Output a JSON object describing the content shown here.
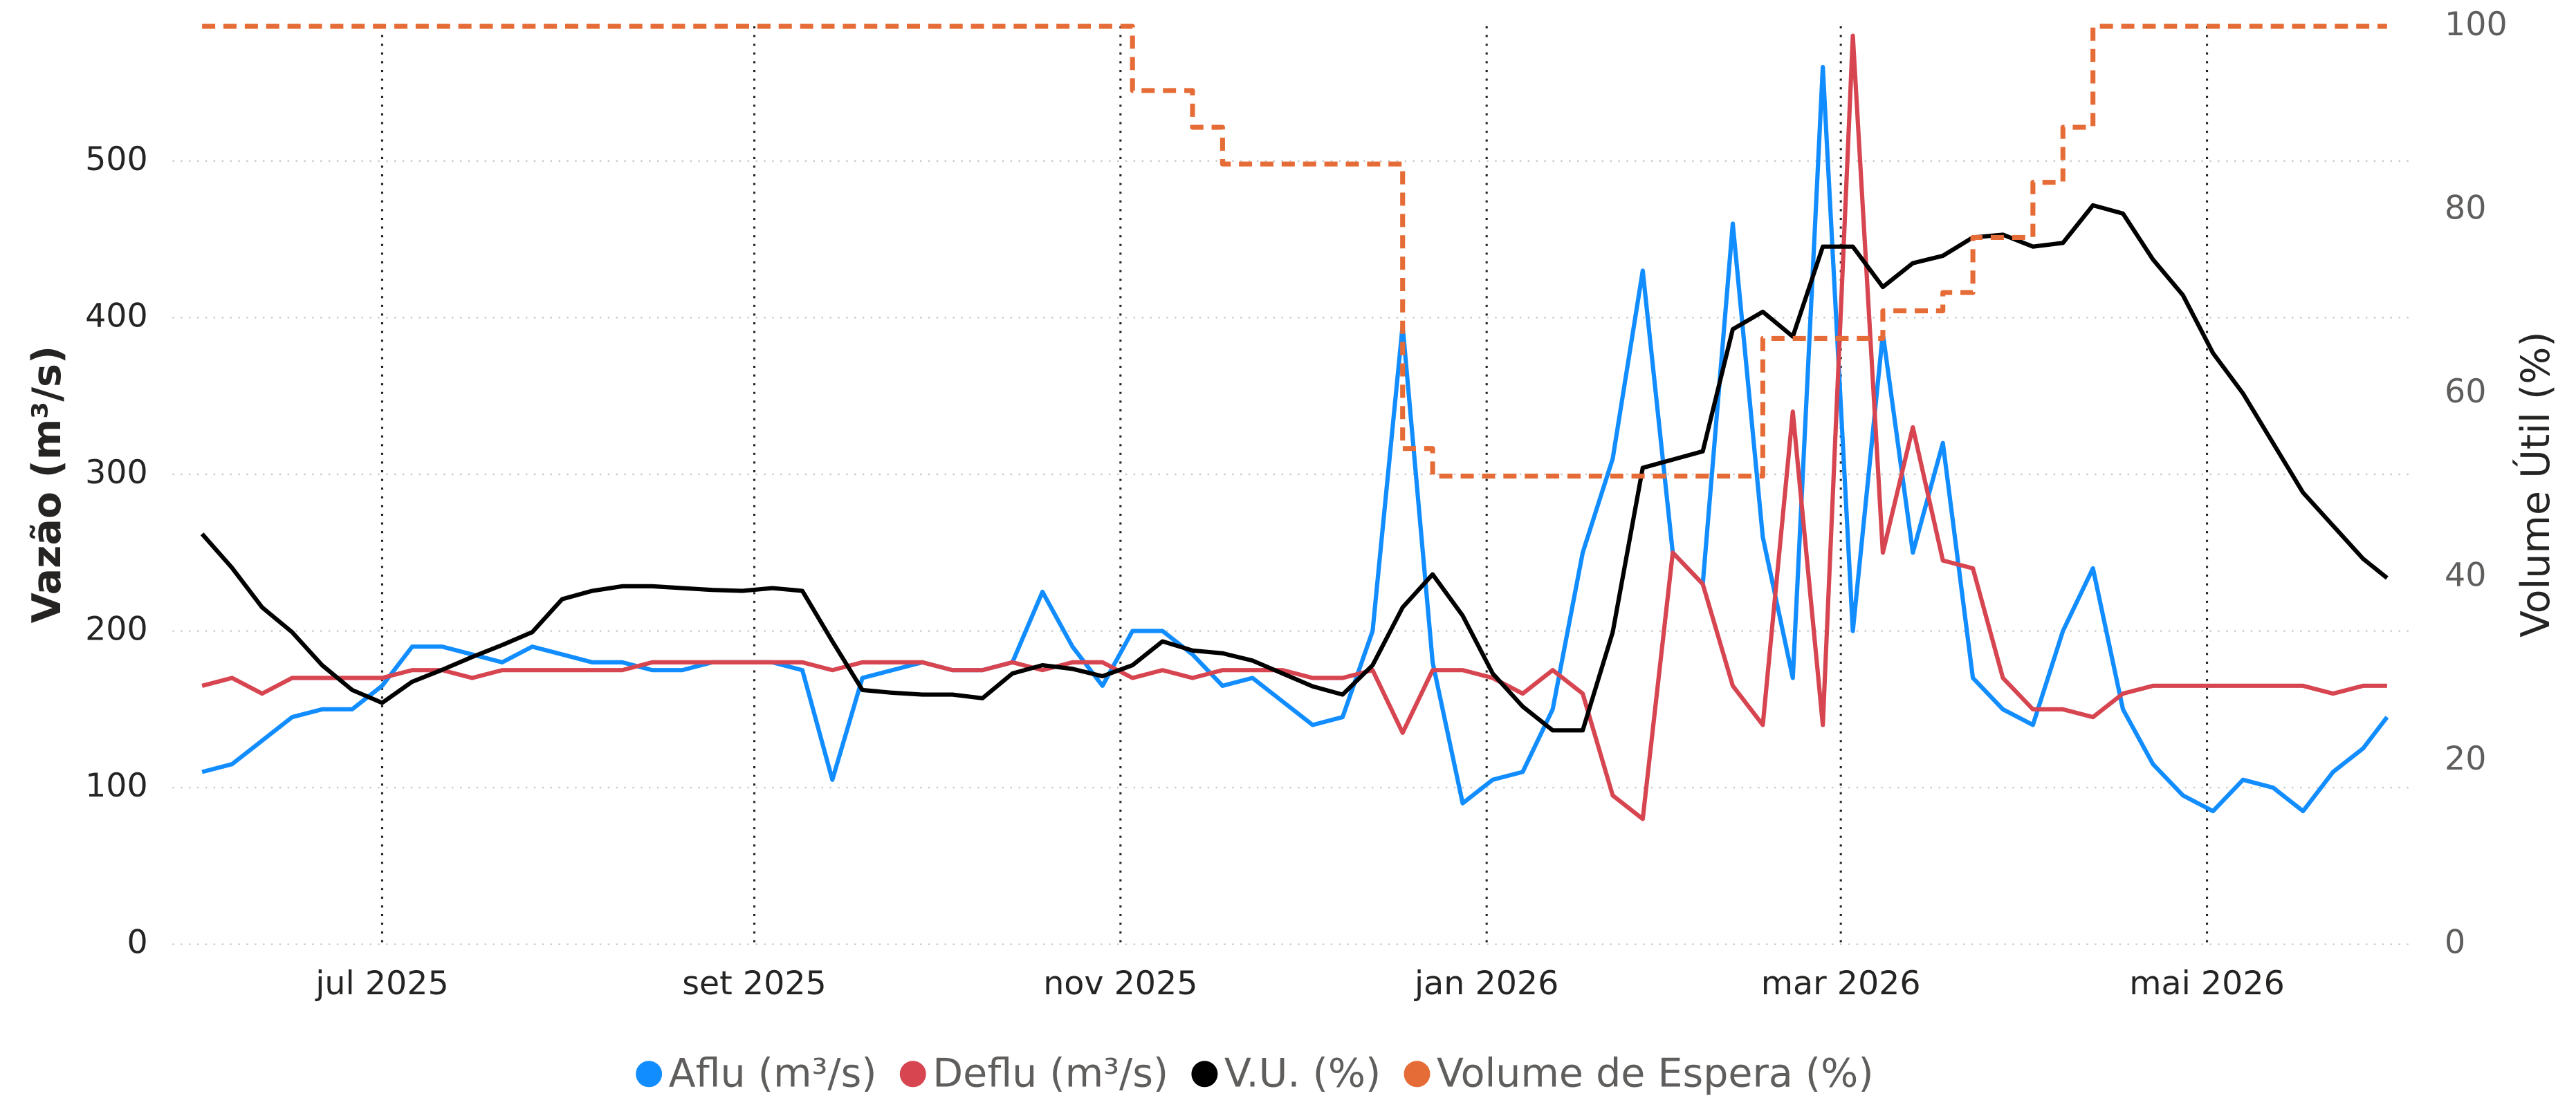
{
  "chart_data": {
    "type": "line",
    "y_label": "Vazão (m³/s)",
    "y2_label": "Volume Útil (%)",
    "x": [
      "2025-06-01",
      "2025-06-06",
      "2025-06-11",
      "2025-06-16",
      "2025-06-21",
      "2025-06-26",
      "2025-07-01",
      "2025-07-06",
      "2025-07-11",
      "2025-07-16",
      "2025-07-21",
      "2025-07-26",
      "2025-07-31",
      "2025-08-05",
      "2025-08-10",
      "2025-08-15",
      "2025-08-20",
      "2025-08-25",
      "2025-08-30",
      "2025-09-04",
      "2025-09-09",
      "2025-09-14",
      "2025-09-19",
      "2025-09-24",
      "2025-09-29",
      "2025-10-04",
      "2025-10-09",
      "2025-10-14",
      "2025-10-19",
      "2025-10-24",
      "2025-10-29",
      "2025-11-03",
      "2025-11-08",
      "2025-11-13",
      "2025-11-18",
      "2025-11-23",
      "2025-11-28",
      "2025-12-03",
      "2025-12-08",
      "2025-12-13",
      "2025-12-18",
      "2025-12-23",
      "2025-12-28",
      "2026-01-02",
      "2026-01-07",
      "2026-01-12",
      "2026-01-17",
      "2026-01-22",
      "2026-01-27",
      "2026-02-01",
      "2026-02-06",
      "2026-02-11",
      "2026-02-16",
      "2026-02-21",
      "2026-02-26",
      "2026-03-03",
      "2026-03-08",
      "2026-03-13",
      "2026-03-18",
      "2026-03-23",
      "2026-03-28",
      "2026-04-02",
      "2026-04-07",
      "2026-04-12",
      "2026-04-17",
      "2026-04-22",
      "2026-04-27",
      "2026-05-02",
      "2026-05-07",
      "2026-05-12",
      "2026-05-17",
      "2026-05-22",
      "2026-05-27",
      "2026-05-31"
    ],
    "xlim": [
      "2025-06-01",
      "2026-05-31"
    ],
    "xticks": [
      {
        "value": "2025-07-01",
        "label": "jul 2025"
      },
      {
        "value": "2025-09-01",
        "label": "set 2025"
      },
      {
        "value": "2025-11-01",
        "label": "nov 2025"
      },
      {
        "value": "2026-01-01",
        "label": "jan 2026"
      },
      {
        "value": "2026-03-01",
        "label": "mar 2026"
      },
      {
        "value": "2026-05-01",
        "label": "mai 2026"
      }
    ],
    "ylim": [
      0,
      586
    ],
    "yticks": [
      0,
      100,
      200,
      300,
      400,
      500
    ],
    "y2lim": [
      0,
      100
    ],
    "y2ticks": [
      0,
      20,
      40,
      60,
      80,
      100
    ],
    "grid": true,
    "legend": "bottom",
    "series": [
      {
        "name": "Aflu (m³/s)",
        "color": "#118DFF",
        "values": [
          110,
          115,
          130,
          145,
          150,
          150,
          165,
          190,
          190,
          185,
          180,
          190,
          185,
          180,
          180,
          175,
          175,
          180,
          180,
          180,
          175,
          105,
          170,
          175,
          180,
          175,
          175,
          180,
          225,
          190,
          165,
          200,
          200,
          185,
          165,
          170,
          155,
          140,
          145,
          200,
          395,
          180,
          90,
          105,
          110,
          150,
          250,
          310,
          430,
          250,
          230,
          460,
          260,
          170,
          560,
          200,
          390,
          250,
          320,
          170,
          150,
          140,
          200,
          240,
          150,
          115,
          95,
          85,
          105,
          100,
          85,
          110,
          125,
          145
        ]
      },
      {
        "name": "Deflu (m³/s)",
        "color": "#D64550",
        "values": [
          165,
          170,
          160,
          170,
          170,
          170,
          170,
          175,
          175,
          170,
          175,
          175,
          175,
          175,
          175,
          180,
          180,
          180,
          180,
          180,
          180,
          175,
          180,
          180,
          180,
          175,
          175,
          180,
          175,
          180,
          180,
          170,
          175,
          170,
          175,
          175,
          175,
          170,
          170,
          175,
          135,
          175,
          175,
          170,
          160,
          175,
          160,
          95,
          80,
          250,
          230,
          165,
          140,
          340,
          140,
          580,
          250,
          330,
          245,
          240,
          170,
          150,
          150,
          145,
          160,
          165,
          165,
          165,
          165,
          165,
          165,
          160,
          165,
          165
        ]
      },
      {
        "name": "V.U. (%)",
        "color": "#000000",
        "axis": "y2",
        "values": [
          44.7,
          41,
          36.7,
          34,
          30.4,
          27.7,
          26.3,
          28.6,
          29.9,
          31.3,
          32.6,
          34,
          37.6,
          38.5,
          39,
          39,
          38.8,
          38.6,
          38.5,
          38.8,
          38.5,
          33,
          27.7,
          27.4,
          27.2,
          27.2,
          26.8,
          29.5,
          30.4,
          30,
          29.2,
          30.4,
          33,
          32,
          31.7,
          30.9,
          29.5,
          28.1,
          27.2,
          30.4,
          36.7,
          40.3,
          35.8,
          29.5,
          25.9,
          23.3,
          23.3,
          34,
          51.9,
          52.8,
          53.7,
          67,
          68.9,
          66.2,
          76,
          76,
          71.6,
          74.2,
          75,
          77,
          77.3,
          76,
          76.4,
          80.5,
          79.6,
          74.6,
          70.7,
          64.4,
          60,
          54.6,
          49.2,
          45.6,
          42,
          39.9
        ]
      },
      {
        "name": "Volume de Espera (%)",
        "color": "#E66C37",
        "axis": "y2",
        "dashed": true,
        "step": true,
        "values": [
          100,
          100,
          100,
          100,
          100,
          100,
          100,
          100,
          100,
          100,
          100,
          100,
          100,
          100,
          100,
          100,
          100,
          100,
          100,
          100,
          100,
          100,
          100,
          100,
          100,
          100,
          100,
          100,
          100,
          100,
          100,
          93,
          93,
          89,
          85,
          85,
          85,
          85,
          85,
          85,
          54,
          51,
          51,
          51,
          51,
          51,
          51,
          51,
          51,
          51,
          51,
          51,
          66,
          66,
          66,
          66,
          69,
          69,
          71,
          77,
          77,
          83,
          89,
          100,
          100,
          100,
          100,
          100,
          100,
          100,
          100,
          100,
          100,
          100
        ]
      }
    ]
  }
}
